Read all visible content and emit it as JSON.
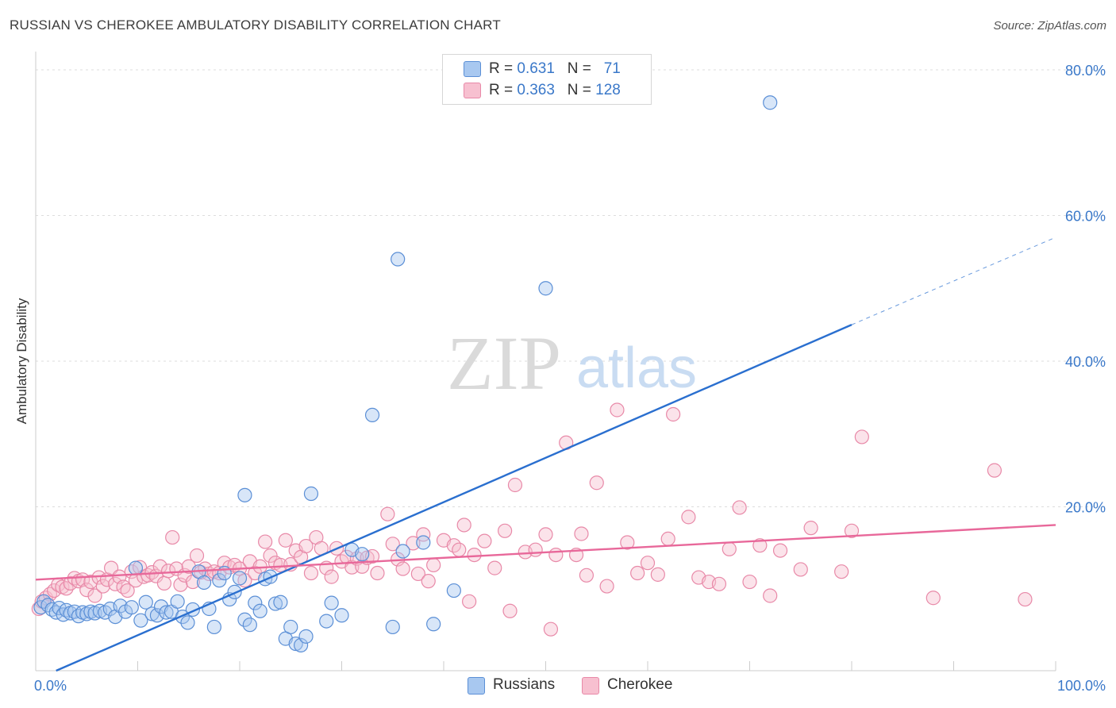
{
  "title": "RUSSIAN VS CHEROKEE AMBULATORY DISABILITY CORRELATION CHART",
  "source": "Source: ZipAtlas.com",
  "watermark": {
    "zip": "ZIP",
    "atlas": "atlas"
  },
  "legend": {
    "r_label": "R =",
    "n_label": "N =",
    "rows": [
      {
        "r": "0.631",
        "n": "71"
      },
      {
        "r": "0.363",
        "n": "128"
      }
    ]
  },
  "colors": {
    "russians_fill": "#a8c8f0",
    "russians_stroke": "#5b8fd6",
    "russians_line": "#2a6fcf",
    "cherokee_fill": "#f7c0d0",
    "cherokee_stroke": "#e889a8",
    "cherokee_line": "#e8689a",
    "axis_text": "#3a78c9"
  },
  "chart_data": {
    "type": "scatter",
    "title": "RUSSIAN VS CHEROKEE AMBULATORY DISABILITY CORRELATION CHART",
    "xlabel": "",
    "ylabel": "Ambulatory Disability",
    "xlim": [
      0,
      100
    ],
    "ylim": [
      -2.5,
      82.5
    ],
    "x_tick_labels": [
      "0.0%",
      "100.0%"
    ],
    "y_ticks": [
      20,
      40,
      60,
      80
    ],
    "y_tick_labels": [
      "20.0%",
      "40.0%",
      "60.0%",
      "80.0%"
    ],
    "grid": "horizontal dashed",
    "legend_placement": "top-center",
    "series": [
      {
        "name": "Russians",
        "R": 0.631,
        "N": 71,
        "trend": {
          "x": [
            2,
            80
          ],
          "y": [
            -2.5,
            45.0
          ],
          "dashed_to": [
            100,
            57.0
          ]
        },
        "points": [
          [
            0.5,
            6.2
          ],
          [
            0.8,
            7.0
          ],
          [
            1.2,
            6.5
          ],
          [
            1.6,
            5.9
          ],
          [
            2.0,
            5.5
          ],
          [
            2.3,
            6.1
          ],
          [
            2.7,
            5.2
          ],
          [
            3.0,
            5.8
          ],
          [
            3.4,
            5.4
          ],
          [
            3.8,
            5.6
          ],
          [
            4.2,
            5.0
          ],
          [
            4.6,
            5.5
          ],
          [
            5.0,
            5.3
          ],
          [
            5.4,
            5.6
          ],
          [
            5.8,
            5.4
          ],
          [
            6.3,
            5.7
          ],
          [
            6.8,
            5.5
          ],
          [
            7.3,
            6.0
          ],
          [
            7.8,
            4.9
          ],
          [
            8.3,
            6.4
          ],
          [
            8.8,
            5.6
          ],
          [
            9.4,
            6.2
          ],
          [
            9.8,
            11.6
          ],
          [
            10.3,
            4.4
          ],
          [
            10.8,
            6.9
          ],
          [
            11.4,
            5.3
          ],
          [
            11.9,
            5.1
          ],
          [
            12.3,
            6.3
          ],
          [
            12.8,
            5.5
          ],
          [
            13.3,
            5.6
          ],
          [
            13.9,
            7.0
          ],
          [
            14.4,
            4.9
          ],
          [
            14.9,
            4.1
          ],
          [
            15.4,
            5.9
          ],
          [
            16.0,
            11.1
          ],
          [
            16.5,
            9.6
          ],
          [
            17.0,
            6.0
          ],
          [
            17.5,
            3.5
          ],
          [
            18.0,
            9.9
          ],
          [
            18.5,
            10.9
          ],
          [
            19.0,
            7.3
          ],
          [
            19.5,
            8.3
          ],
          [
            20.0,
            10.2
          ],
          [
            20.5,
            4.5
          ],
          [
            21.0,
            3.8
          ],
          [
            21.5,
            6.8
          ],
          [
            22.0,
            5.7
          ],
          [
            22.5,
            10.1
          ],
          [
            23.0,
            10.4
          ],
          [
            23.5,
            6.7
          ],
          [
            24.0,
            6.9
          ],
          [
            24.5,
            1.9
          ],
          [
            25.0,
            3.5
          ],
          [
            25.5,
            1.2
          ],
          [
            26.0,
            1.0
          ],
          [
            26.5,
            2.2
          ],
          [
            20.5,
            21.6
          ],
          [
            27.0,
            21.8
          ],
          [
            28.5,
            4.3
          ],
          [
            29.0,
            6.8
          ],
          [
            30.0,
            5.1
          ],
          [
            31.0,
            14.1
          ],
          [
            32.0,
            13.5
          ],
          [
            33.0,
            32.6
          ],
          [
            35.0,
            3.5
          ],
          [
            35.5,
            54.0
          ],
          [
            36.0,
            13.9
          ],
          [
            38.0,
            15.1
          ],
          [
            39.0,
            3.9
          ],
          [
            41.0,
            8.5
          ],
          [
            50.0,
            50.0
          ],
          [
            72.0,
            75.5
          ]
        ]
      },
      {
        "name": "Cherokee",
        "R": 0.363,
        "N": 128,
        "trend": {
          "x": [
            0,
            100
          ],
          "y": [
            10.0,
            17.5
          ]
        },
        "points": [
          [
            0.3,
            6.0
          ],
          [
            0.6,
            7.0
          ],
          [
            1.0,
            7.5
          ],
          [
            1.4,
            8.0
          ],
          [
            1.8,
            8.5
          ],
          [
            2.2,
            9.3
          ],
          [
            2.6,
            9.0
          ],
          [
            3.0,
            8.8
          ],
          [
            3.4,
            9.5
          ],
          [
            3.8,
            10.2
          ],
          [
            4.2,
            9.8
          ],
          [
            4.6,
            10.0
          ],
          [
            5.0,
            8.6
          ],
          [
            5.4,
            9.7
          ],
          [
            5.8,
            7.8
          ],
          [
            6.2,
            10.3
          ],
          [
            6.6,
            9.1
          ],
          [
            7.0,
            10.0
          ],
          [
            7.4,
            11.6
          ],
          [
            7.8,
            9.4
          ],
          [
            8.2,
            10.4
          ],
          [
            8.6,
            9.0
          ],
          [
            9.0,
            8.5
          ],
          [
            9.4,
            11.1
          ],
          [
            9.8,
            9.9
          ],
          [
            10.2,
            11.7
          ],
          [
            10.6,
            10.4
          ],
          [
            11.0,
            10.6
          ],
          [
            11.4,
            11.0
          ],
          [
            11.8,
            10.5
          ],
          [
            12.2,
            11.8
          ],
          [
            12.6,
            9.5
          ],
          [
            13.0,
            11.2
          ],
          [
            13.4,
            15.8
          ],
          [
            13.8,
            11.5
          ],
          [
            14.2,
            9.3
          ],
          [
            14.6,
            10.6
          ],
          [
            15.0,
            11.8
          ],
          [
            15.4,
            9.7
          ],
          [
            15.8,
            13.3
          ],
          [
            16.2,
            11.0
          ],
          [
            16.6,
            11.5
          ],
          [
            17.0,
            10.8
          ],
          [
            17.5,
            11.1
          ],
          [
            18.0,
            10.9
          ],
          [
            18.5,
            12.3
          ],
          [
            19.0,
            11.7
          ],
          [
            19.5,
            12.0
          ],
          [
            20.0,
            11.5
          ],
          [
            20.5,
            9.9
          ],
          [
            21.0,
            12.5
          ],
          [
            21.5,
            10.9
          ],
          [
            22.0,
            11.8
          ],
          [
            22.5,
            15.2
          ],
          [
            23.0,
            13.3
          ],
          [
            23.5,
            12.3
          ],
          [
            24.0,
            12.0
          ],
          [
            24.5,
            15.4
          ],
          [
            25.0,
            12.1
          ],
          [
            25.5,
            14.0
          ],
          [
            26.0,
            13.1
          ],
          [
            26.5,
            14.6
          ],
          [
            27.0,
            10.9
          ],
          [
            27.5,
            15.8
          ],
          [
            28.0,
            14.3
          ],
          [
            28.5,
            11.6
          ],
          [
            29.0,
            10.4
          ],
          [
            29.5,
            14.3
          ],
          [
            30.0,
            12.5
          ],
          [
            30.5,
            13.1
          ],
          [
            31.0,
            11.7
          ],
          [
            31.5,
            12.9
          ],
          [
            32.0,
            11.8
          ],
          [
            32.5,
            13.0
          ],
          [
            33.0,
            13.2
          ],
          [
            33.5,
            10.9
          ],
          [
            34.5,
            19.0
          ],
          [
            35.0,
            14.9
          ],
          [
            35.5,
            12.8
          ],
          [
            36.0,
            11.5
          ],
          [
            37.0,
            15.0
          ],
          [
            37.5,
            10.8
          ],
          [
            38.0,
            16.2
          ],
          [
            38.5,
            9.8
          ],
          [
            39.0,
            12.0
          ],
          [
            40.0,
            15.4
          ],
          [
            41.0,
            14.7
          ],
          [
            41.5,
            14.1
          ],
          [
            42.0,
            17.5
          ],
          [
            42.5,
            7.0
          ],
          [
            43.0,
            13.4
          ],
          [
            44.0,
            15.3
          ],
          [
            45.0,
            11.6
          ],
          [
            46.0,
            16.7
          ],
          [
            46.5,
            5.7
          ],
          [
            47.0,
            23.0
          ],
          [
            48.0,
            13.8
          ],
          [
            49.0,
            14.1
          ],
          [
            50.0,
            16.2
          ],
          [
            50.5,
            3.2
          ],
          [
            51.0,
            13.4
          ],
          [
            52.0,
            28.8
          ],
          [
            53.0,
            13.4
          ],
          [
            53.5,
            16.3
          ],
          [
            54.0,
            10.6
          ],
          [
            55.0,
            23.3
          ],
          [
            56.0,
            9.1
          ],
          [
            57.0,
            33.3
          ],
          [
            58.0,
            15.1
          ],
          [
            59.0,
            10.9
          ],
          [
            60.0,
            12.3
          ],
          [
            61.0,
            10.7
          ],
          [
            62.0,
            15.6
          ],
          [
            62.5,
            32.7
          ],
          [
            64.0,
            18.6
          ],
          [
            65.0,
            10.3
          ],
          [
            66.0,
            9.7
          ],
          [
            67.0,
            9.4
          ],
          [
            68.0,
            14.2
          ],
          [
            69.0,
            19.9
          ],
          [
            70.0,
            9.7
          ],
          [
            71.0,
            14.7
          ],
          [
            72.0,
            7.8
          ],
          [
            73.0,
            14.0
          ],
          [
            75.0,
            11.4
          ],
          [
            76.0,
            17.1
          ],
          [
            79.0,
            11.1
          ],
          [
            80.0,
            16.7
          ],
          [
            81.0,
            29.6
          ],
          [
            88.0,
            7.5
          ],
          [
            94.0,
            25.0
          ],
          [
            97.0,
            7.3
          ]
        ]
      }
    ]
  }
}
